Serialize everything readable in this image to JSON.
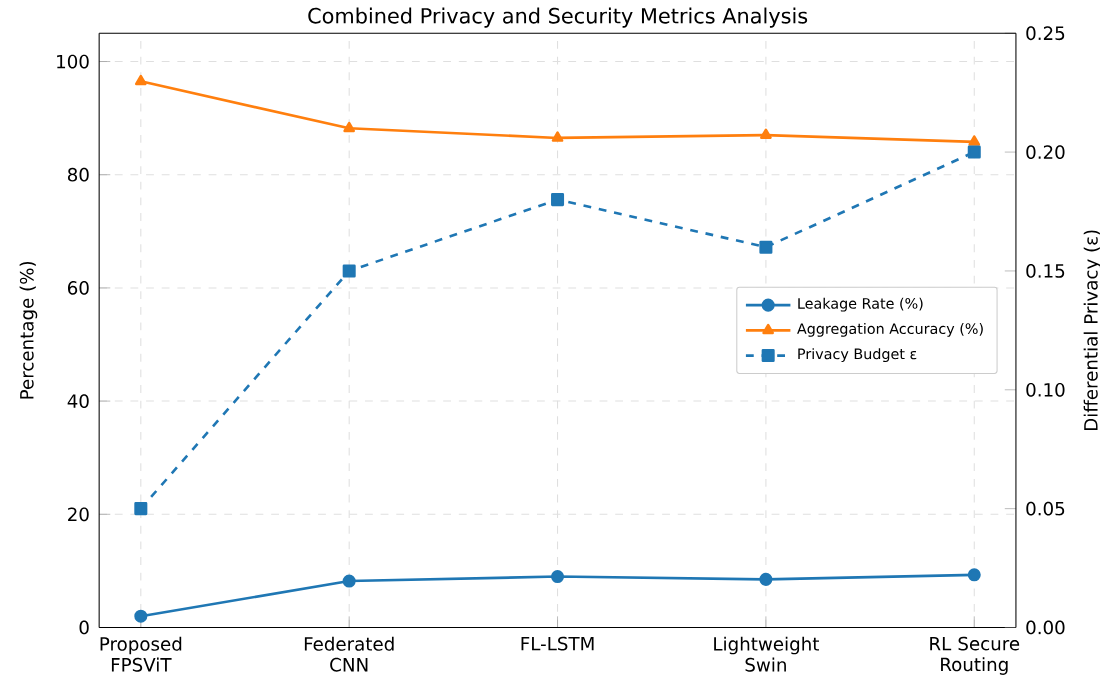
{
  "chart_data": {
    "type": "line",
    "title": "Combined Privacy and Security Metrics Analysis",
    "categories": [
      "Proposed FPSViT",
      "Federated CNN",
      "FL-LSTM",
      "Lightweight Swin",
      "RL Secure Routing"
    ],
    "ylabel": "Percentage (%)",
    "y2label": "Differential Privacy (ε)",
    "ylim": [
      0,
      105
    ],
    "yticks": [
      0,
      20,
      40,
      60,
      80,
      100
    ],
    "y2lim": [
      0,
      0.25
    ],
    "y2ticks": [
      {
        "value": 0,
        "label": "0.00"
      },
      {
        "value": 0.05,
        "label": "0.05"
      },
      {
        "value": 0.1,
        "label": "0.10"
      },
      {
        "value": 0.15,
        "label": "0.15"
      },
      {
        "value": 0.2,
        "label": "0.20"
      },
      {
        "value": 0.25,
        "label": "0.25"
      }
    ],
    "grid": true,
    "legend": "right",
    "series": [
      {
        "name": "Leakage Rate (%)",
        "color": "#1f77b4",
        "marker": "circle",
        "line_style": "solid",
        "values": [
          2,
          8.2,
          9,
          8.5,
          9.3
        ]
      },
      {
        "name": "Aggregation Accuracy (%)",
        "color": "#ff7f0e",
        "marker": "triangle",
        "line_style": "solid",
        "values": [
          96.5,
          88.2,
          86.5,
          87,
          85.8
        ]
      },
      {
        "name": "Privacy Budget ε",
        "color": "#1f77b4",
        "marker": "square",
        "line_style": "dashed",
        "axis": "y2",
        "values": [
          0.05,
          0.15,
          0.18,
          0.16,
          0.2
        ]
      }
    ]
  }
}
